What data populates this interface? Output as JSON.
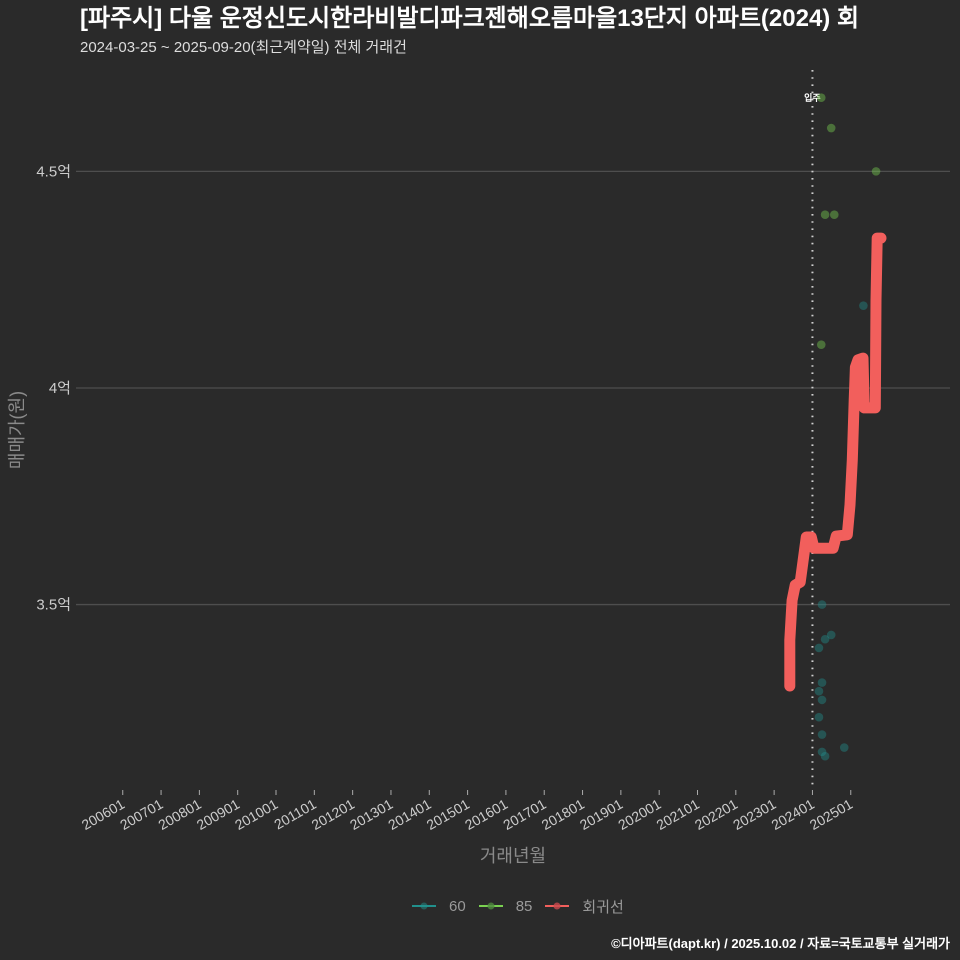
{
  "header": {
    "title": "[파주시] 다울 운정신도시한라비발디파크젠해오름마을13단지 아파트(2024) 회",
    "subtitle": "2024-03-25 ~ 2025-09-20(최근계약일) 전체 거래건"
  },
  "axes": {
    "xlabel": "거래년월",
    "ylabel": "매매가(원)"
  },
  "legend": {
    "items": [
      {
        "label": "60",
        "color": "#21908c"
      },
      {
        "label": "85",
        "color": "#7ad151"
      },
      {
        "label": "회귀선",
        "color": "#f25f5c"
      }
    ]
  },
  "footer": {
    "credit": "©디아파트(dapt.kr) / 2025.10.02 / 자료=국토교통부 실거래가"
  },
  "chart_data": {
    "type": "scatter",
    "title": "[파주시] 다울 운정신도시한라비발디파크젠해오름마을13단지 아파트(2024) 회",
    "subtitle": "2024-03-25 ~ 2025-09-20(최근계약일) 전체 거래건",
    "xlabel": "거래년월",
    "ylabel": "매매가(원)",
    "x_unit": "decimal year",
    "y_unit": "억 원",
    "xlim": [
      2004.78,
      2027.59
    ],
    "ylim": [
      3.072,
      4.734
    ],
    "grid": "horizontal",
    "legend_position": "bottom",
    "x_ticks": [
      "200601",
      "200701",
      "200801",
      "200901",
      "201001",
      "201101",
      "201201",
      "201301",
      "201401",
      "201501",
      "201601",
      "201701",
      "201801",
      "201901",
      "202001",
      "202101",
      "202201",
      "202301",
      "202401",
      "202501"
    ],
    "y_ticks": [
      {
        "value": 3.5,
        "label": "3.5억"
      },
      {
        "value": 4.0,
        "label": "4억"
      },
      {
        "value": 4.5,
        "label": "4.5억"
      }
    ],
    "annotations": [
      {
        "type": "dotted-vline",
        "x": 2024.0,
        "label": "입주"
      }
    ],
    "series": [
      {
        "name": "60",
        "type": "scatter",
        "color": "#21908c",
        "points": [
          [
            2024.25,
            3.5
          ],
          [
            2024.49,
            3.43
          ],
          [
            2024.33,
            3.42
          ],
          [
            2024.17,
            3.4
          ],
          [
            2024.25,
            3.32
          ],
          [
            2024.17,
            3.3
          ],
          [
            2024.25,
            3.28
          ],
          [
            2024.17,
            3.24
          ],
          [
            2024.25,
            3.2
          ],
          [
            2024.83,
            3.17
          ],
          [
            2024.25,
            3.16
          ],
          [
            2024.33,
            3.15
          ],
          [
            2025.33,
            4.19
          ]
        ]
      },
      {
        "name": "85",
        "type": "scatter",
        "color": "#7ad151",
        "points": [
          [
            2024.23,
            4.67
          ],
          [
            2024.49,
            4.6
          ],
          [
            2025.66,
            4.5
          ],
          [
            2024.33,
            4.4
          ],
          [
            2024.57,
            4.4
          ],
          [
            2024.23,
            4.1
          ]
        ]
      },
      {
        "name": "회귀선",
        "type": "line",
        "color": "#f25f5c",
        "points": [
          [
            2023.41,
            3.312
          ],
          [
            2023.41,
            3.418
          ],
          [
            2023.47,
            3.51
          ],
          [
            2023.55,
            3.545
          ],
          [
            2023.68,
            3.552
          ],
          [
            2023.76,
            3.603
          ],
          [
            2023.84,
            3.656
          ],
          [
            2023.97,
            3.656
          ],
          [
            2024.04,
            3.63
          ],
          [
            2024.54,
            3.63
          ],
          [
            2024.62,
            3.658
          ],
          [
            2024.91,
            3.661
          ],
          [
            2024.98,
            3.73
          ],
          [
            2025.04,
            3.834
          ],
          [
            2025.09,
            3.972
          ],
          [
            2025.12,
            4.048
          ],
          [
            2025.19,
            4.065
          ],
          [
            2025.32,
            4.069
          ],
          [
            2025.35,
            3.954
          ],
          [
            2025.64,
            3.954
          ],
          [
            2025.66,
            4.203
          ],
          [
            2025.69,
            4.346
          ],
          [
            2025.79,
            4.346
          ]
        ]
      }
    ]
  }
}
